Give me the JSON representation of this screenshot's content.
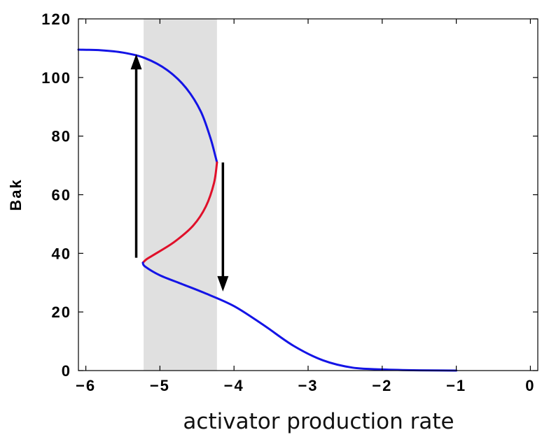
{
  "chart_data": {
    "type": "line",
    "title": "",
    "xlabel": "activator production rate",
    "ylabel": "Bak",
    "xlim": [
      -6.1,
      0.1
    ],
    "ylim": [
      0,
      120
    ],
    "x_ticks": [
      -6,
      -5,
      -4,
      -3,
      -2,
      -1,
      0
    ],
    "x_tick_labels": [
      "−6",
      "−5",
      "−4",
      "−3",
      "−2",
      "−1",
      "0"
    ],
    "y_ticks": [
      0,
      20,
      40,
      60,
      80,
      100,
      120
    ],
    "y_tick_labels": [
      "0",
      "20",
      "40",
      "60",
      "80",
      "100",
      "120"
    ],
    "grid": false,
    "bistable_region": {
      "x": [
        -5.22,
        -4.23
      ],
      "color": "#e0e0e0"
    },
    "series": [
      {
        "color": "#1414e6",
        "points": [
          [
            -6.1,
            109.5
          ],
          [
            -5.8,
            109.3
          ],
          [
            -5.5,
            108.5
          ],
          [
            -5.2,
            106.6
          ],
          [
            -4.9,
            102.5
          ],
          [
            -4.65,
            96.5
          ],
          [
            -4.45,
            88.5
          ],
          [
            -4.32,
            79.5
          ],
          [
            -4.25,
            73.0
          ],
          [
            -4.23,
            71.0
          ]
        ]
      },
      {
        "color": "#e0102a",
        "points": [
          [
            -4.23,
            71.0
          ],
          [
            -4.27,
            64.0
          ],
          [
            -4.38,
            56.0
          ],
          [
            -4.55,
            49.5
          ],
          [
            -4.8,
            44.0
          ],
          [
            -5.05,
            40.0
          ],
          [
            -5.18,
            38.0
          ],
          [
            -5.23,
            36.8
          ]
        ]
      },
      {
        "color": "#1414e6",
        "points": [
          [
            -5.23,
            36.8
          ],
          [
            -5.2,
            35.5
          ],
          [
            -5.0,
            32.5
          ],
          [
            -4.7,
            29.5
          ],
          [
            -4.4,
            26.5
          ],
          [
            -4.0,
            22.0
          ],
          [
            -3.6,
            15.5
          ],
          [
            -3.2,
            8.5
          ],
          [
            -2.8,
            3.5
          ],
          [
            -2.4,
            1.0
          ],
          [
            -2.0,
            0.4
          ],
          [
            -1.5,
            0.1
          ],
          [
            -1.0,
            0.0
          ]
        ]
      }
    ],
    "arrows": [
      {
        "direction": "up",
        "x": -5.32,
        "y_from": 38.5,
        "y_to": 108
      },
      {
        "direction": "down",
        "x": -4.15,
        "y_from": 71,
        "y_to": 27
      }
    ]
  }
}
